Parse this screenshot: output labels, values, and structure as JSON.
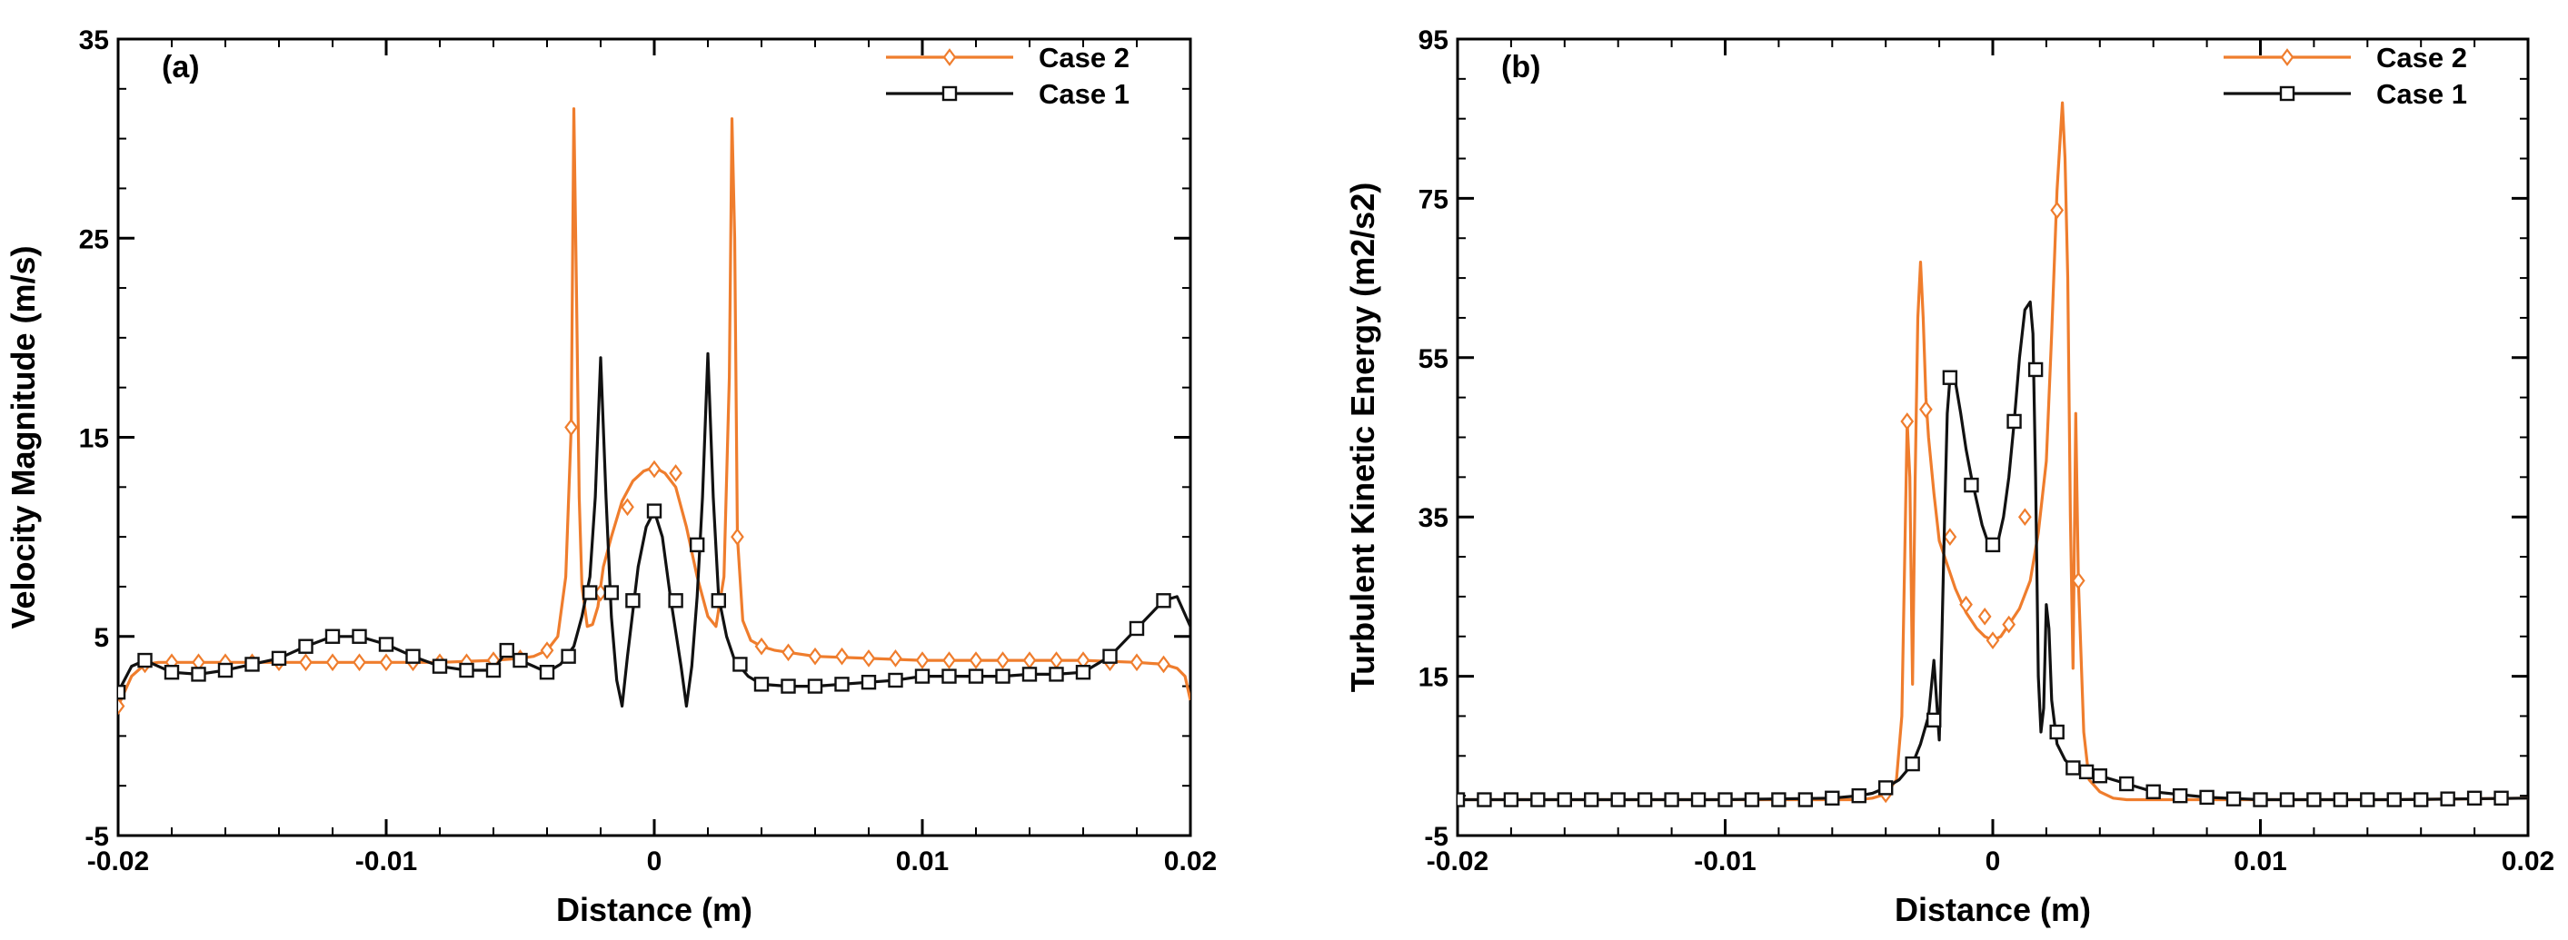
{
  "colors": {
    "case2": "#ef7d2d",
    "case1": "#111111",
    "axis": "#000000"
  },
  "chart_data": [
    {
      "type": "line",
      "panel_label": "(a)",
      "xlabel": "Distance (m)",
      "ylabel": "Velocity Magnitude (m/s)",
      "xlim": [
        -0.02,
        0.02
      ],
      "ylim": [
        -5,
        35
      ],
      "xticks": [
        -0.02,
        -0.01,
        0,
        0.01,
        0.02
      ],
      "xtick_labels": [
        "-0.02",
        "-0.01",
        "0",
        "0.01",
        "0.02"
      ],
      "yticks": [
        -5,
        5,
        15,
        25,
        35
      ],
      "ytick_labels": [
        "-5",
        "5",
        "15",
        "25",
        "35"
      ],
      "legend_position": "top-right",
      "series": [
        {
          "name": "Case 2",
          "color_key": "case2",
          "marker": "diamond",
          "x": [
            -0.02,
            -0.0195,
            -0.019,
            -0.0185,
            -0.018,
            -0.016,
            -0.014,
            -0.012,
            -0.01,
            -0.008,
            -0.006,
            -0.005,
            -0.0045,
            -0.004,
            -0.0036,
            -0.0033,
            -0.0031,
            -0.003,
            -0.0029,
            -0.0028,
            -0.0027,
            -0.0025,
            -0.0023,
            -0.0021,
            -0.0019,
            -0.0016,
            -0.0012,
            -0.0008,
            -0.0004,
            0,
            0.0004,
            0.0008,
            0.0012,
            0.0016,
            0.002,
            0.0023,
            0.0026,
            0.0028,
            0.0029,
            0.003,
            0.0031,
            0.0033,
            0.0036,
            0.004,
            0.0045,
            0.005,
            0.006,
            0.008,
            0.01,
            0.012,
            0.014,
            0.016,
            0.018,
            0.019,
            0.0195,
            0.0198,
            0.02
          ],
          "y": [
            1.5,
            3.0,
            3.6,
            3.7,
            3.7,
            3.7,
            3.7,
            3.7,
            3.7,
            3.7,
            3.8,
            3.9,
            4.0,
            4.3,
            5.0,
            8.0,
            15.5,
            31.5,
            22.0,
            12.0,
            7.5,
            5.5,
            5.6,
            6.5,
            8.5,
            10.0,
            11.8,
            12.8,
            13.3,
            13.5,
            13.2,
            12.5,
            10.5,
            8.0,
            6.0,
            5.5,
            8.0,
            18.0,
            31.0,
            25.0,
            10.0,
            5.8,
            4.8,
            4.5,
            4.3,
            4.2,
            4.0,
            3.9,
            3.8,
            3.8,
            3.8,
            3.8,
            3.7,
            3.6,
            3.4,
            3.0,
            1.8
          ],
          "marker_x": [
            -0.02,
            -0.019,
            -0.018,
            -0.017,
            -0.016,
            -0.015,
            -0.014,
            -0.013,
            -0.012,
            -0.011,
            -0.01,
            -0.009,
            -0.008,
            -0.007,
            -0.006,
            -0.005,
            -0.004,
            -0.0031,
            -0.002,
            -0.001,
            0,
            0.0008,
            0.0031,
            0.004,
            0.005,
            0.006,
            0.007,
            0.008,
            0.009,
            0.01,
            0.011,
            0.012,
            0.013,
            0.014,
            0.015,
            0.016,
            0.017,
            0.018,
            0.019
          ],
          "marker_y": [
            1.5,
            3.6,
            3.7,
            3.7,
            3.7,
            3.7,
            3.7,
            3.7,
            3.7,
            3.7,
            3.7,
            3.7,
            3.7,
            3.7,
            3.8,
            3.9,
            4.3,
            15.5,
            7.2,
            11.5,
            13.4,
            13.2,
            10.0,
            4.5,
            4.2,
            4.0,
            4.0,
            3.9,
            3.9,
            3.8,
            3.8,
            3.8,
            3.8,
            3.8,
            3.8,
            3.8,
            3.7,
            3.7,
            3.6
          ]
        },
        {
          "name": "Case 1",
          "color_key": "case1",
          "marker": "square",
          "x": [
            -0.02,
            -0.0195,
            -0.019,
            -0.018,
            -0.017,
            -0.016,
            -0.015,
            -0.014,
            -0.013,
            -0.012,
            -0.011,
            -0.01,
            -0.009,
            -0.008,
            -0.007,
            -0.006,
            -0.0055,
            -0.005,
            -0.0045,
            -0.004,
            -0.0035,
            -0.003,
            -0.0027,
            -0.0024,
            -0.0022,
            -0.002,
            -0.0018,
            -0.0016,
            -0.0014,
            -0.0012,
            -0.001,
            -0.0006,
            -0.0003,
            0,
            0.0003,
            0.0006,
            0.001,
            0.0012,
            0.0014,
            0.0016,
            0.0018,
            0.002,
            0.0022,
            0.0024,
            0.0027,
            0.003,
            0.0035,
            0.004,
            0.005,
            0.006,
            0.007,
            0.008,
            0.009,
            0.01,
            0.011,
            0.012,
            0.013,
            0.014,
            0.015,
            0.016,
            0.017,
            0.018,
            0.019,
            0.0195,
            0.02
          ],
          "y": [
            2.2,
            3.5,
            3.8,
            3.2,
            3.1,
            3.3,
            3.6,
            3.9,
            4.5,
            5.0,
            5.0,
            4.6,
            4.0,
            3.5,
            3.3,
            3.3,
            4.3,
            3.8,
            3.5,
            3.2,
            3.6,
            4.5,
            6.0,
            8.0,
            12.0,
            19.0,
            12.0,
            6.0,
            2.8,
            1.5,
            4.0,
            8.5,
            10.5,
            11.3,
            10.0,
            7.0,
            3.5,
            1.5,
            3.5,
            7.0,
            12.0,
            19.2,
            12.0,
            7.0,
            5.0,
            3.8,
            3.0,
            2.6,
            2.5,
            2.5,
            2.6,
            2.7,
            2.8,
            3.0,
            3.0,
            3.0,
            3.0,
            3.1,
            3.1,
            3.2,
            4.0,
            5.4,
            6.8,
            7.0,
            5.5
          ],
          "marker_x": [
            -0.02,
            -0.019,
            -0.018,
            -0.017,
            -0.016,
            -0.015,
            -0.014,
            -0.013,
            -0.012,
            -0.011,
            -0.01,
            -0.009,
            -0.008,
            -0.007,
            -0.006,
            -0.0055,
            -0.005,
            -0.004,
            -0.0032,
            -0.0024,
            -0.0016,
            -0.0008,
            0,
            0.0008,
            0.0016,
            0.0024,
            0.0032,
            0.004,
            0.005,
            0.006,
            0.007,
            0.008,
            0.009,
            0.01,
            0.011,
            0.012,
            0.013,
            0.014,
            0.015,
            0.016,
            0.017,
            0.018,
            0.019
          ],
          "marker_y": [
            2.2,
            3.8,
            3.2,
            3.1,
            3.3,
            3.6,
            3.9,
            4.5,
            5.0,
            5.0,
            4.6,
            4.0,
            3.5,
            3.3,
            3.3,
            4.3,
            3.8,
            3.2,
            4.0,
            7.2,
            7.2,
            6.8,
            11.3,
            6.8,
            9.6,
            6.8,
            3.6,
            2.6,
            2.5,
            2.5,
            2.6,
            2.7,
            2.8,
            3.0,
            3.0,
            3.0,
            3.0,
            3.1,
            3.1,
            3.2,
            4.0,
            5.4,
            6.8
          ]
        }
      ]
    },
    {
      "type": "line",
      "panel_label": "(b)",
      "xlabel": "Distance (m)",
      "ylabel": "Turbulent Kinetic Energy (m2/s2)",
      "xlim": [
        -0.02,
        0.02
      ],
      "ylim": [
        -5,
        95
      ],
      "xticks": [
        -0.02,
        -0.01,
        0,
        0.01,
        0.02
      ],
      "xtick_labels": [
        "-0.02",
        "-0.01",
        "0",
        "0.01",
        "0.02"
      ],
      "yticks": [
        -5,
        15,
        35,
        55,
        75,
        95
      ],
      "ytick_labels": [
        "-5",
        "15",
        "35",
        "55",
        "75",
        "95"
      ],
      "legend_position": "top-right",
      "series": [
        {
          "name": "Case 2",
          "color_key": "case2",
          "marker": "diamond",
          "x": [
            -0.02,
            -0.01,
            -0.005,
            -0.0045,
            -0.004,
            -0.0036,
            -0.0034,
            -0.0032,
            -0.0031,
            -0.003,
            -0.0029,
            -0.0028,
            -0.0027,
            -0.0026,
            -0.0025,
            -0.0024,
            -0.0022,
            -0.002,
            -0.0017,
            -0.0014,
            -0.001,
            -0.0006,
            -0.0003,
            0,
            0.0003,
            0.0006,
            0.001,
            0.0014,
            0.0017,
            0.002,
            0.0022,
            0.0024,
            0.0026,
            0.0027,
            0.0028,
            0.0029,
            0.003,
            0.0031,
            0.0032,
            0.0034,
            0.0036,
            0.004,
            0.0045,
            0.005,
            0.01,
            0.015,
            0.02
          ],
          "y": [
            -0.5,
            -0.5,
            -0.5,
            -0.3,
            0.2,
            2.0,
            10.0,
            47.0,
            40.0,
            14.0,
            40.0,
            60.0,
            67.0,
            60.0,
            50.0,
            45.0,
            38.0,
            32.0,
            29.0,
            26.0,
            23.0,
            21.0,
            20.0,
            19.5,
            20.0,
            21.5,
            23.5,
            27.0,
            33.0,
            42.0,
            58.0,
            76.0,
            87.0,
            80.0,
            65.0,
            35.0,
            16.0,
            48.0,
            27.0,
            8.0,
            2.0,
            0.5,
            -0.3,
            -0.5,
            -0.5,
            -0.5,
            -0.3
          ],
          "marker_x": [
            -0.004,
            -0.0032,
            -0.0025,
            -0.0016,
            -0.001,
            -0.0003,
            0,
            0.0006,
            0.0012,
            0.0024,
            0.0032
          ],
          "marker_y": [
            0.2,
            47.0,
            48.5,
            32.5,
            24.0,
            22.5,
            19.5,
            21.5,
            35.0,
            73.5,
            27.0
          ]
        },
        {
          "name": "Case 1",
          "color_key": "case1",
          "marker": "square",
          "x": [
            -0.02,
            -0.01,
            -0.006,
            -0.005,
            -0.0045,
            -0.004,
            -0.0035,
            -0.003,
            -0.0027,
            -0.0024,
            -0.0022,
            -0.002,
            -0.0019,
            -0.0018,
            -0.0017,
            -0.0016,
            -0.0015,
            -0.0014,
            -0.0012,
            -0.001,
            -0.0008,
            -0.0006,
            -0.0004,
            -0.0002,
            0,
            0.0002,
            0.0004,
            0.0006,
            0.0008,
            0.001,
            0.0012,
            0.0014,
            0.0015,
            0.0016,
            0.0017,
            0.0018,
            0.0019,
            0.002,
            0.0021,
            0.0022,
            0.0024,
            0.0027,
            0.003,
            0.0035,
            0.004,
            0.005,
            0.006,
            0.008,
            0.01,
            0.015,
            0.02
          ],
          "y": [
            -0.5,
            -0.5,
            -0.3,
            0.0,
            0.3,
            1.0,
            2.0,
            4.0,
            6.5,
            10.0,
            17.0,
            7.0,
            20.0,
            35.0,
            48.0,
            52.5,
            53.0,
            52.0,
            48.0,
            43.5,
            40.0,
            37.0,
            34.0,
            32.0,
            31.5,
            32.0,
            35.0,
            40.0,
            47.0,
            55.0,
            61.0,
            62.0,
            58.0,
            40.0,
            15.0,
            8.0,
            11.0,
            24.0,
            21.0,
            12.0,
            6.5,
            4.5,
            3.5,
            3.0,
            2.5,
            1.5,
            0.5,
            -0.2,
            -0.5,
            -0.5,
            -0.3
          ],
          "marker_x": [
            -0.02,
            -0.019,
            -0.018,
            -0.017,
            -0.016,
            -0.015,
            -0.014,
            -0.013,
            -0.012,
            -0.011,
            -0.01,
            -0.009,
            -0.008,
            -0.007,
            -0.006,
            -0.005,
            -0.004,
            -0.003,
            -0.0022,
            -0.0016,
            -0.0008,
            0,
            0.0008,
            0.0016,
            0.0024,
            0.003,
            0.0035,
            0.004,
            0.005,
            0.006,
            0.007,
            0.008,
            0.009,
            0.01,
            0.011,
            0.012,
            0.013,
            0.014,
            0.015,
            0.016,
            0.017,
            0.018,
            0.019
          ],
          "marker_y": [
            -0.5,
            -0.5,
            -0.5,
            -0.5,
            -0.5,
            -0.5,
            -0.5,
            -0.5,
            -0.5,
            -0.5,
            -0.5,
            -0.5,
            -0.5,
            -0.5,
            -0.3,
            0.0,
            1.0,
            4.0,
            9.5,
            52.5,
            39.0,
            31.5,
            47.0,
            53.5,
            8.0,
            3.5,
            3.0,
            2.5,
            1.5,
            0.5,
            0.0,
            -0.2,
            -0.4,
            -0.5,
            -0.5,
            -0.5,
            -0.5,
            -0.5,
            -0.5,
            -0.5,
            -0.4,
            -0.3,
            -0.3
          ]
        }
      ]
    }
  ]
}
